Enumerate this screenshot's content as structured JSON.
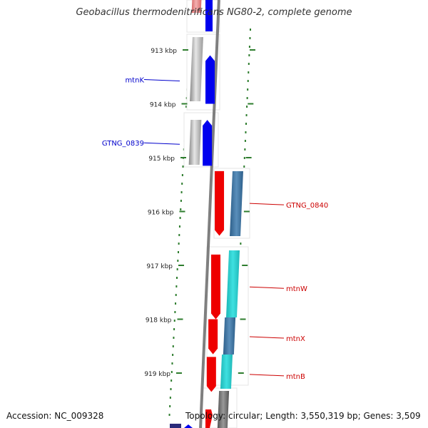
{
  "title": "Geobacillus thermodenitrificans NG80-2, complete genome",
  "footer": {
    "accession": "Accession: NC_009328",
    "topology": "Topology: circular; Length: 3,550,319 bp; Genes: 3,509"
  },
  "colors": {
    "axis": "#7f7f7f",
    "tick": "#2e7d2e",
    "forward_label": "#0000cc",
    "reverse_label": "#cc0000"
  },
  "scale": {
    "unit": "kbp",
    "ticks": [
      {
        "label": "913 kbp",
        "kbp": 913
      },
      {
        "label": "914 kbp",
        "kbp": 914
      },
      {
        "label": "915 kbp",
        "kbp": 915
      },
      {
        "label": "916 kbp",
        "kbp": 916
      },
      {
        "label": "917 kbp",
        "kbp": 917
      },
      {
        "label": "918 kbp",
        "kbp": 918
      },
      {
        "label": "919 kbp",
        "kbp": 919
      }
    ]
  },
  "genes": [
    {
      "label": "mtnK",
      "strand": "+",
      "start_kbp": 913.1,
      "end_kbp": 914.0,
      "color": "#0000ee"
    },
    {
      "label": "GTNG_0839",
      "strand": "+",
      "start_kbp": 914.3,
      "end_kbp": 915.15,
      "color": "#0000ee"
    },
    {
      "label": "GTNG_0840",
      "strand": "-",
      "start_kbp": 915.25,
      "end_kbp": 916.45,
      "color": "#ee0000"
    },
    {
      "label": "mtnW",
      "strand": "-",
      "start_kbp": 916.8,
      "end_kbp": 918.0,
      "color": "#ee0000"
    },
    {
      "label": "mtnX",
      "strand": "-",
      "start_kbp": 918.0,
      "end_kbp": 918.65,
      "color": "#ee0000"
    },
    {
      "label": "mtnB",
      "strand": "-",
      "start_kbp": 918.7,
      "end_kbp": 919.35,
      "color": "#ee0000"
    }
  ]
}
